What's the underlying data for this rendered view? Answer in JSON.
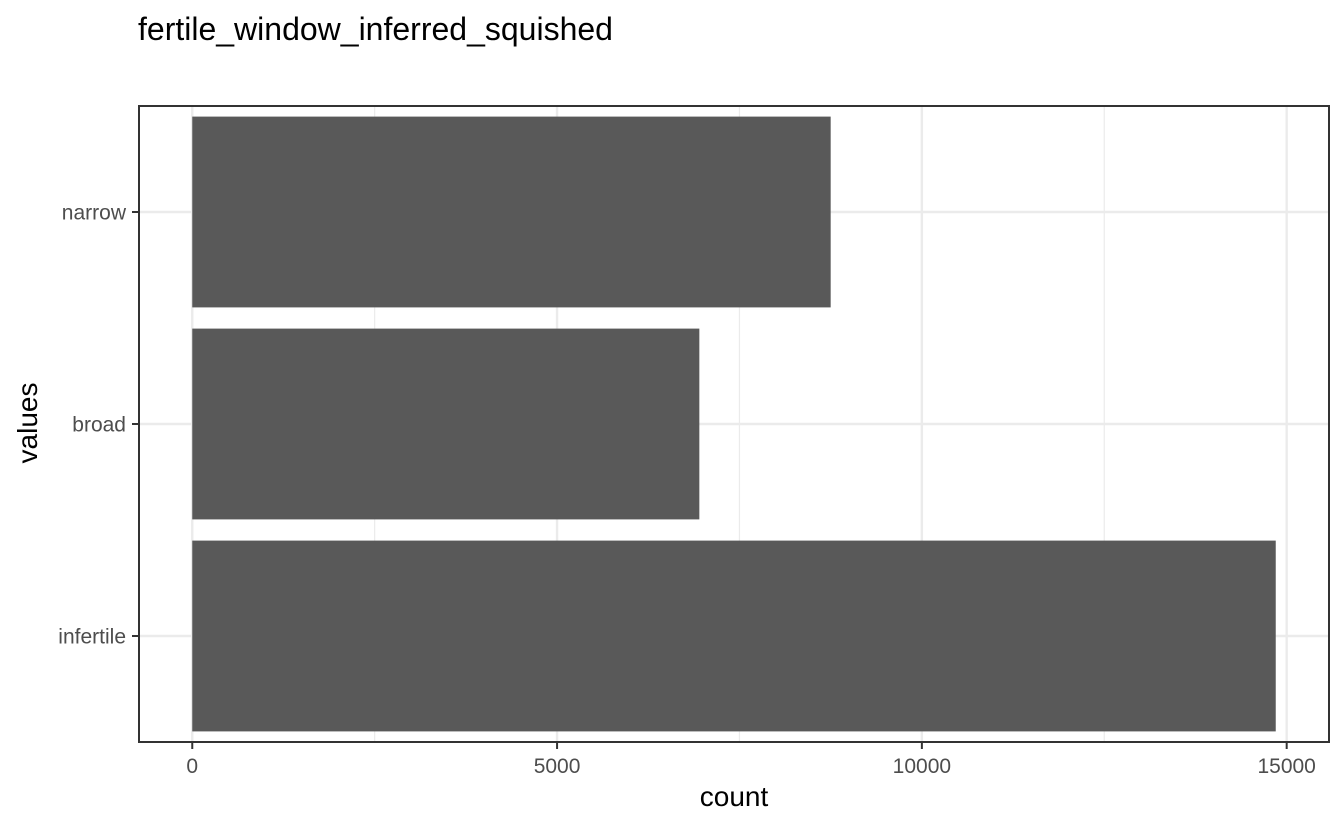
{
  "chart_data": {
    "type": "bar",
    "orientation": "horizontal",
    "title": "fertile_window_inferred_squished",
    "xlabel": "count",
    "ylabel": "values",
    "categories": [
      "infertile",
      "broad",
      "narrow"
    ],
    "values": [
      14850,
      6950,
      8750
    ],
    "xlim": [
      -730,
      15580
    ],
    "x_ticks": [
      0,
      5000,
      10000,
      15000
    ],
    "x_tick_labels": [
      "0",
      "5000",
      "10000",
      "15000"
    ],
    "x_minor_ticks": [
      2500,
      7500,
      12500
    ],
    "grid": true,
    "legend": "none",
    "colors": {
      "bar": "#595959",
      "grid": "#ebebeb",
      "panel_border": "#333333",
      "tick_label": "#4d4d4d",
      "background": "#ffffff"
    }
  }
}
